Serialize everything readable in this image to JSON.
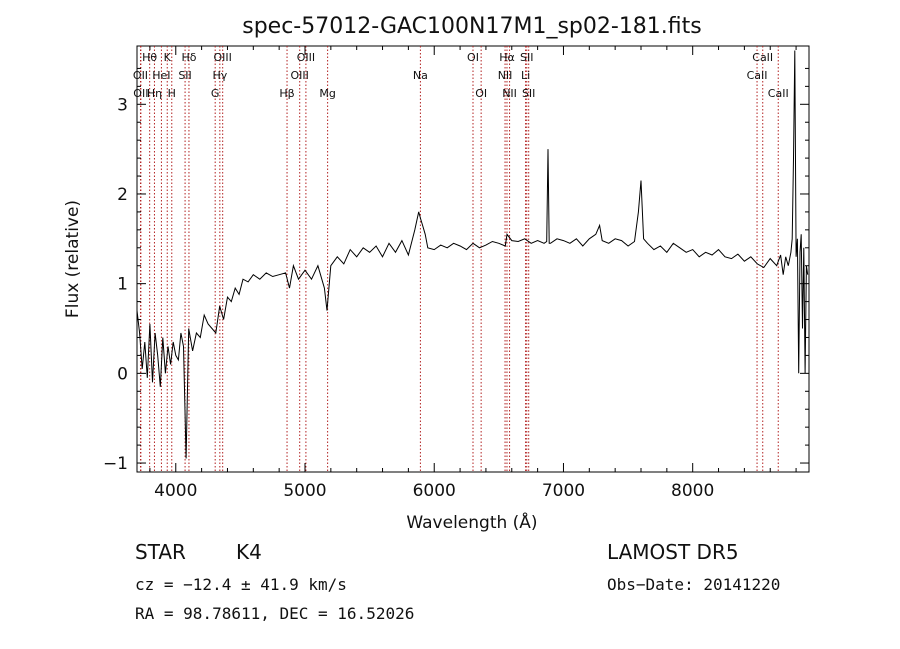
{
  "chart_data": {
    "type": "line",
    "title": "spec-57012-GAC100N17M1_sp02-181.fits",
    "xlabel": "Wavelength (Å)",
    "ylabel": "Flux (relative)",
    "xlim": [
      3700,
      8900
    ],
    "ylim": [
      -1.1,
      3.65
    ],
    "xticks": [
      4000,
      5000,
      6000,
      7000,
      8000
    ],
    "yticks": [
      -1,
      0,
      1,
      2,
      3
    ],
    "grid": false,
    "series": [
      {
        "x": [
          3700,
          3720,
          3740,
          3760,
          3780,
          3800,
          3820,
          3840,
          3860,
          3880,
          3900,
          3920,
          3940,
          3960,
          3980,
          4000,
          4020,
          4040,
          4060,
          4080,
          4100,
          4130,
          4160,
          4190,
          4220,
          4250,
          4280,
          4310,
          4340,
          4370,
          4400,
          4430,
          4460,
          4490,
          4520,
          4560,
          4600,
          4650,
          4700,
          4750,
          4800,
          4850,
          4880,
          4910,
          4950,
          5000,
          5050,
          5100,
          5150,
          5170,
          5200,
          5250,
          5300,
          5350,
          5400,
          5450,
          5500,
          5550,
          5600,
          5650,
          5700,
          5750,
          5800,
          5850,
          5880,
          5895,
          5910,
          5930,
          5950,
          6000,
          6050,
          6100,
          6150,
          6200,
          6250,
          6300,
          6350,
          6400,
          6450,
          6500,
          6550,
          6563,
          6600,
          6650,
          6700,
          6750,
          6800,
          6850,
          6870,
          6880,
          6890,
          6900,
          6950,
          7000,
          7050,
          7100,
          7150,
          7200,
          7250,
          7280,
          7300,
          7350,
          7400,
          7450,
          7500,
          7550,
          7580,
          7600,
          7620,
          7650,
          7700,
          7750,
          7800,
          7850,
          7900,
          7950,
          8000,
          8050,
          8100,
          8150,
          8200,
          8250,
          8300,
          8350,
          8400,
          8450,
          8500,
          8550,
          8600,
          8650,
          8680,
          8700,
          8720,
          8740,
          8760,
          8770,
          8780,
          8790,
          8800,
          8810,
          8820,
          8830,
          8840,
          8850,
          8860,
          8870,
          8880,
          8890
        ],
        "y": [
          0.7,
          0.45,
          0.05,
          0.35,
          -0.05,
          0.55,
          -0.1,
          0.45,
          0.2,
          -0.15,
          0.4,
          0.0,
          0.3,
          0.1,
          0.35,
          0.2,
          0.15,
          0.45,
          0.3,
          -0.95,
          0.5,
          0.25,
          0.45,
          0.4,
          0.65,
          0.55,
          0.5,
          0.45,
          0.75,
          0.6,
          0.85,
          0.8,
          0.95,
          0.88,
          1.05,
          1.02,
          1.1,
          1.05,
          1.12,
          1.08,
          1.1,
          1.12,
          0.95,
          1.2,
          1.05,
          1.15,
          1.05,
          1.2,
          0.95,
          0.7,
          1.2,
          1.3,
          1.22,
          1.38,
          1.3,
          1.4,
          1.35,
          1.42,
          1.3,
          1.45,
          1.35,
          1.48,
          1.32,
          1.6,
          1.8,
          1.72,
          1.65,
          1.55,
          1.4,
          1.38,
          1.43,
          1.4,
          1.45,
          1.42,
          1.38,
          1.45,
          1.4,
          1.43,
          1.47,
          1.45,
          1.42,
          1.55,
          1.48,
          1.47,
          1.5,
          1.45,
          1.48,
          1.45,
          1.47,
          2.5,
          1.45,
          1.45,
          1.5,
          1.48,
          1.45,
          1.5,
          1.42,
          1.5,
          1.55,
          1.65,
          1.48,
          1.45,
          1.5,
          1.48,
          1.42,
          1.47,
          1.8,
          2.15,
          1.5,
          1.45,
          1.38,
          1.42,
          1.35,
          1.45,
          1.4,
          1.35,
          1.38,
          1.3,
          1.35,
          1.32,
          1.38,
          1.3,
          1.28,
          1.33,
          1.25,
          1.3,
          1.22,
          1.18,
          1.28,
          1.2,
          1.32,
          1.1,
          1.3,
          1.2,
          1.35,
          1.5,
          2.4,
          3.6,
          1.3,
          1.5,
          0.0,
          1.35,
          1.55,
          0.5,
          1.4,
          0.0,
          1.2,
          1.1
        ]
      }
    ],
    "lines": [
      {
        "label": "Hθ",
        "x": 3798,
        "row": 0
      },
      {
        "label": "OII",
        "x": 3727,
        "row": 1
      },
      {
        "label": "OII",
        "x": 3730,
        "row": 2
      },
      {
        "label": "HeI",
        "x": 3889,
        "row": 1
      },
      {
        "label": "K",
        "x": 3934,
        "row": 0
      },
      {
        "label": "Hη",
        "x": 3835,
        "row": 2
      },
      {
        "label": "H",
        "x": 3969,
        "row": 2
      },
      {
        "label": "Hδ",
        "x": 4102,
        "row": 0
      },
      {
        "label": "SII",
        "x": 4072,
        "row": 1
      },
      {
        "label": "OIII",
        "x": 4363,
        "row": 0
      },
      {
        "label": "Hγ",
        "x": 4341,
        "row": 1
      },
      {
        "label": "G",
        "x": 4305,
        "row": 2
      },
      {
        "label": "Hβ",
        "x": 4861,
        "row": 2
      },
      {
        "label": "OIII",
        "x": 5007,
        "row": 0
      },
      {
        "label": "OIII",
        "x": 4959,
        "row": 1
      },
      {
        "label": "Mg",
        "x": 5175,
        "row": 2
      },
      {
        "label": "Na",
        "x": 5893,
        "row": 1
      },
      {
        "label": "OI",
        "x": 6300,
        "row": 0
      },
      {
        "label": "OI",
        "x": 6363,
        "row": 2
      },
      {
        "label": "Hα",
        "x": 6563,
        "row": 0
      },
      {
        "label": "NII",
        "x": 6548,
        "row": 1
      },
      {
        "label": "NII",
        "x": 6583,
        "row": 2
      },
      {
        "label": "SII",
        "x": 6716,
        "row": 0
      },
      {
        "label": "Li",
        "x": 6707,
        "row": 1
      },
      {
        "label": "SII",
        "x": 6731,
        "row": 2
      },
      {
        "label": "CaII",
        "x": 8542,
        "row": 0
      },
      {
        "label": "CaII",
        "x": 8498,
        "row": 1
      },
      {
        "label": "CaII",
        "x": 8662,
        "row": 2
      }
    ]
  },
  "info": {
    "object_class": "STAR",
    "subclass": "K4",
    "survey": "LAMOST  DR5",
    "redshift_line": "cz = −12.4 ± 41.9 km/s",
    "obs_date": "Obs−Date: 20141220",
    "coords": "RA =  98.78611, DEC =  16.52026"
  }
}
